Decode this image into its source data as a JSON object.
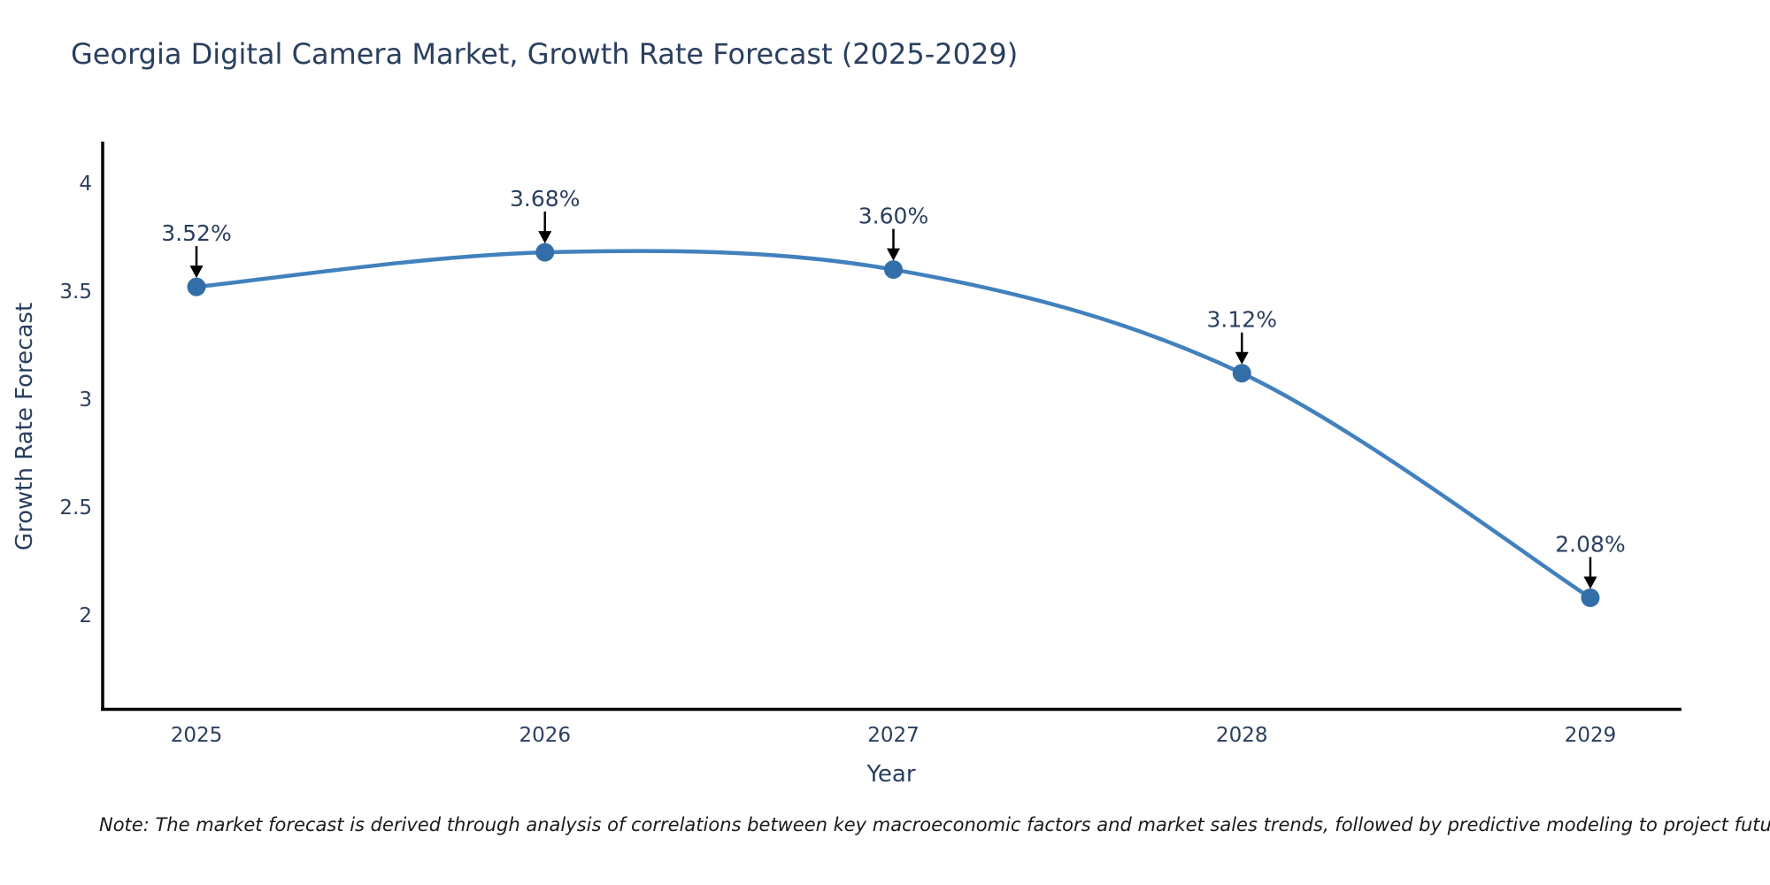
{
  "page": {
    "background": "#ffffff"
  },
  "chart_data": {
    "type": "line",
    "title": "Georgia Digital Camera Market, Growth Rate Forecast (2025-2029)",
    "xlabel": "Year",
    "ylabel": "Growth Rate Forecast",
    "x": [
      2025,
      2026,
      2027,
      2028,
      2029
    ],
    "y": [
      3.52,
      3.68,
      3.6,
      3.12,
      2.08
    ],
    "point_labels": [
      "3.52%",
      "3.68%",
      "3.60%",
      "3.12%",
      "2.08%"
    ],
    "xticks": [
      "2025",
      "2026",
      "2027",
      "2028",
      "2029"
    ],
    "yticks": [
      "2",
      "2.5",
      "3",
      "3.5",
      "4"
    ],
    "ytick_values": [
      2,
      2.5,
      3,
      3.5,
      4
    ],
    "ylim": [
      1.56,
      4.19
    ],
    "grid": false,
    "legend": "none",
    "line_shape": "spline",
    "colors": {
      "line": "#4181bd",
      "marker": "#336ea8",
      "annotation_text": "#2a3f5f",
      "annotation_arrow": "#000000",
      "axis_line": "#000000",
      "title_text": "#2a3f5f",
      "tick_text": "#2a3f5f",
      "note_text": "#1a1a1a"
    }
  },
  "note": {
    "text": "Note: The market forecast is derived through analysis of correlations between key macroeconomic factors and market sales trends, followed by predictive modeling to project future sales"
  }
}
